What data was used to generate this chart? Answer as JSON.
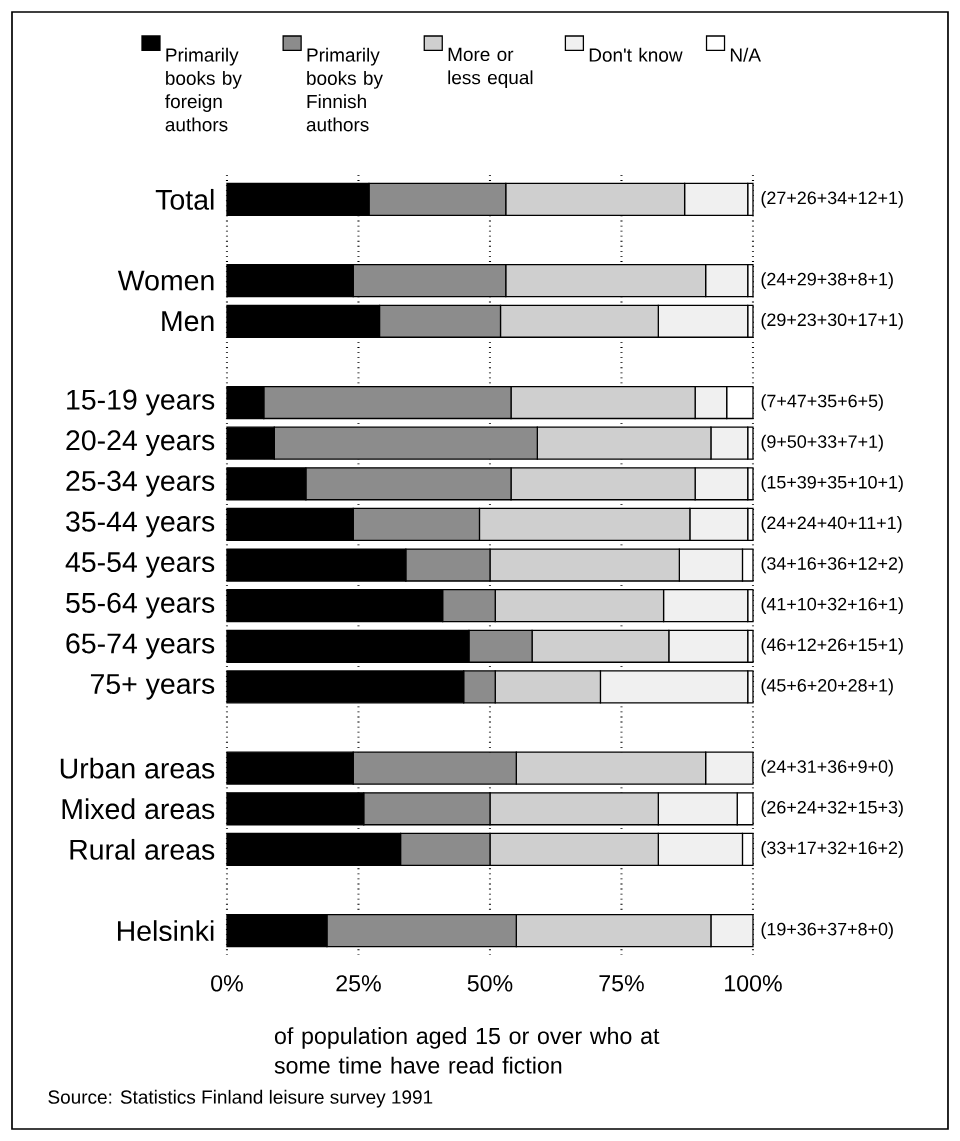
{
  "chart_data": {
    "type": "bar",
    "orientation": "horizontal",
    "stacked": true,
    "xlabel": "of population aged 15 or over who at some time have read fiction",
    "categories": [
      "Total",
      null,
      "Women",
      "Men",
      null,
      "15-19 years",
      "20-24 years",
      "25-34 years",
      "35-44 years",
      "45-54 years",
      "55-64 years",
      "65-74 years",
      "75+    years",
      null,
      "Urban areas",
      "Mixed areas",
      "Rural areas",
      null,
      "Helsinki"
    ],
    "series": [
      {
        "name": "Primarily books by foreign authors",
        "color": "#000000",
        "values": [
          27,
          null,
          24,
          29,
          null,
          7,
          9,
          15,
          24,
          34,
          41,
          46,
          45,
          null,
          24,
          26,
          33,
          null,
          19
        ]
      },
      {
        "name": "Primarily books by Finnish authors",
        "color": "#8c8c8c",
        "values": [
          26,
          null,
          29,
          23,
          null,
          47,
          50,
          39,
          24,
          16,
          10,
          12,
          6,
          null,
          31,
          24,
          17,
          null,
          36
        ]
      },
      {
        "name": "More or less equal",
        "color": "#cfcfcf",
        "values": [
          34,
          null,
          38,
          30,
          null,
          35,
          33,
          35,
          40,
          36,
          32,
          26,
          20,
          null,
          36,
          32,
          32,
          null,
          37
        ]
      },
      {
        "name": "Don't know",
        "color": "#f0f0f0",
        "values": [
          12,
          null,
          8,
          17,
          null,
          6,
          7,
          10,
          11,
          12,
          16,
          15,
          28,
          null,
          9,
          15,
          16,
          null,
          8
        ]
      },
      {
        "name": "N/A",
        "color": "#ffffff",
        "values": [
          1,
          null,
          1,
          1,
          null,
          5,
          1,
          1,
          1,
          2,
          1,
          1,
          1,
          null,
          0,
          3,
          2,
          null,
          0
        ]
      }
    ],
    "xlim": [
      0,
      100
    ],
    "xticks": [
      {
        "value": 0,
        "label": "0%"
      },
      {
        "value": 25,
        "label": "25%"
      },
      {
        "value": 50,
        "label": "50%"
      },
      {
        "value": 75,
        "label": "75%"
      },
      {
        "value": 100,
        "label": "100%"
      }
    ],
    "grid": "x",
    "legend": "top",
    "annotations": [
      "(27+26+34+12+1)",
      "(24+29+38+8+1)",
      "(29+23+30+17+1)",
      "(7+47+35+6+5)",
      "(9+50+33+7+1)",
      "(15+39+35+10+1)",
      "(24+24+40+11+1)",
      "(34+16+36+12+2)",
      "(41+10+32+16+1)",
      "(46+12+26+15+1)",
      "(45+6+20+28+1)",
      "(24+31+36+9+0)",
      "(26+24+32+15+3)",
      "(33+17+32+16+2)",
      "(19+36+37+8+0)",
      "Source: Statistics Finland leisure survey 1991"
    ]
  }
}
